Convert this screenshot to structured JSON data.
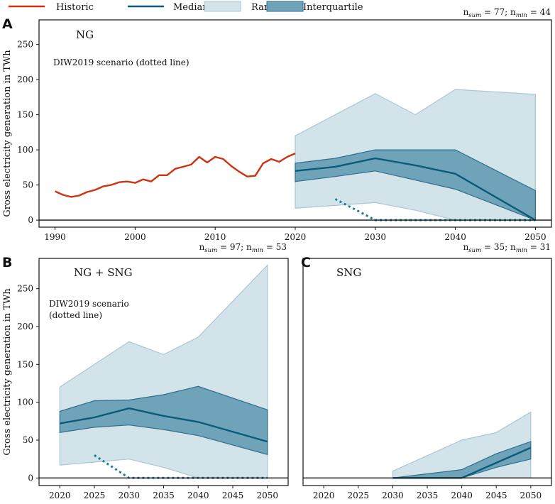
{
  "legend": {
    "historic": "Historic",
    "median": "Median",
    "range": "Range",
    "interquartile": "Interquartile"
  },
  "colors": {
    "historic": "#cc3311",
    "median": "#0c5a7a",
    "range_fill": "#d3e3ea",
    "range_edge": "#a9c7d4",
    "iqr_fill": "#6ea3b9",
    "iqr_edge": "#2f6f8c",
    "dotted": "#1a7f96"
  },
  "ylabel": "Gross electricity generation in TWh",
  "chart_data": [
    {
      "type": "area",
      "panel": "A",
      "title": "NG",
      "note": "DIW2019 scenario (dotted line)",
      "n_sum": "77",
      "n_min": "44",
      "xlim": [
        1988,
        2052
      ],
      "ylim": [
        -10,
        285
      ],
      "xticks": [
        1990,
        2000,
        2010,
        2020,
        2030,
        2040,
        2050
      ],
      "yticks": [
        0,
        50,
        100,
        150,
        200,
        250
      ],
      "historic": {
        "x": [
          1990,
          1991,
          1992,
          1993,
          1994,
          1995,
          1996,
          1997,
          1998,
          1999,
          2000,
          2001,
          2002,
          2003,
          2004,
          2005,
          2006,
          2007,
          2008,
          2009,
          2010,
          2011,
          2012,
          2013,
          2014,
          2015,
          2016,
          2017,
          2018,
          2019,
          2020
        ],
        "y": [
          41,
          36,
          33,
          35,
          40,
          43,
          48,
          50,
          54,
          55,
          53,
          58,
          55,
          64,
          64,
          73,
          76,
          79,
          90,
          82,
          90,
          87,
          77,
          69,
          62,
          63,
          81,
          87,
          83,
          90,
          95
        ]
      },
      "range": {
        "x": [
          2020,
          2030,
          2035,
          2040,
          2050
        ],
        "upper": [
          120,
          180,
          150,
          186,
          179
        ],
        "lower": [
          17,
          25,
          14,
          0,
          0
        ]
      },
      "iqr": {
        "x": [
          2020,
          2025,
          2030,
          2040,
          2050
        ],
        "upper": [
          81,
          88,
          100,
          100,
          42
        ],
        "lower": [
          55,
          62,
          70,
          44,
          0
        ]
      },
      "median": {
        "x": [
          2020,
          2025,
          2030,
          2035,
          2040,
          2050
        ],
        "y": [
          70,
          76,
          88,
          78,
          66,
          0
        ]
      },
      "dotted": {
        "x": [
          2025,
          2030,
          2040,
          2050
        ],
        "y": [
          30,
          0,
          0,
          0
        ]
      }
    },
    {
      "type": "area",
      "panel": "B",
      "title": "NG + SNG",
      "note_lines": [
        "DIW2019 scenario",
        "(dotted line)"
      ],
      "n_sum": "97",
      "n_min": "53",
      "xlim": [
        2017,
        2053
      ],
      "ylim": [
        -10,
        290
      ],
      "xticks": [
        2020,
        2025,
        2030,
        2035,
        2040,
        2045,
        2050
      ],
      "yticks": [
        0,
        50,
        100,
        150,
        200,
        250
      ],
      "range": {
        "x": [
          2020,
          2030,
          2035,
          2040,
          2050
        ],
        "upper": [
          120,
          180,
          163,
          186,
          281
        ],
        "lower": [
          17,
          25,
          14,
          0,
          0
        ]
      },
      "iqr": {
        "x": [
          2020,
          2025,
          2030,
          2035,
          2040,
          2050
        ],
        "upper": [
          88,
          102,
          103,
          110,
          121,
          90
        ],
        "lower": [
          60,
          67,
          70,
          64,
          56,
          31
        ]
      },
      "median": {
        "x": [
          2020,
          2025,
          2030,
          2035,
          2040,
          2050
        ],
        "y": [
          72,
          80,
          92,
          82,
          74,
          48
        ]
      },
      "dotted": {
        "x": [
          2025,
          2030,
          2040,
          2050
        ],
        "y": [
          30,
          0,
          0,
          0
        ]
      }
    },
    {
      "type": "area",
      "panel": "C",
      "title": "SNG",
      "n_sum": "35",
      "n_min": "31",
      "xlim": [
        2017,
        2053
      ],
      "ylim": [
        -10,
        290
      ],
      "xticks": [
        2020,
        2025,
        2030,
        2035,
        2040,
        2045,
        2050
      ],
      "yticks": [],
      "range": {
        "x": [
          2030,
          2040,
          2045,
          2050
        ],
        "upper": [
          9,
          50,
          60,
          87
        ],
        "lower": [
          0,
          0,
          0,
          0
        ]
      },
      "iqr": {
        "x": [
          2030,
          2040,
          2045,
          2050
        ],
        "upper": [
          0,
          11,
          32,
          48
        ],
        "lower": [
          0,
          0,
          14,
          25
        ]
      },
      "median": {
        "x": [
          2030,
          2040,
          2045,
          2050
        ],
        "y": [
          0,
          0,
          20,
          40
        ]
      }
    }
  ]
}
